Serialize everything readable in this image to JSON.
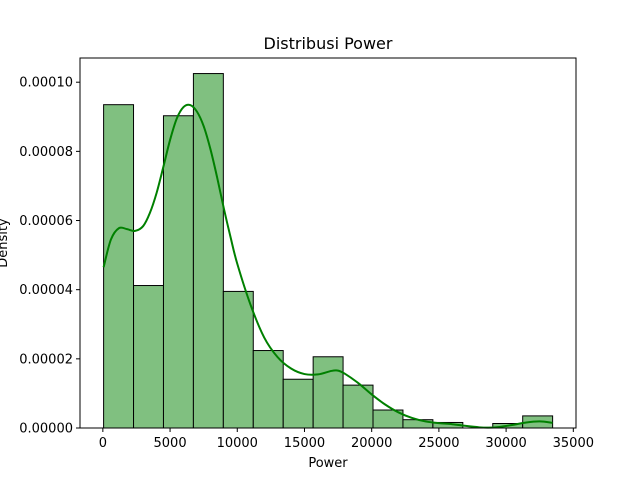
{
  "chart_data": {
    "type": "histogram",
    "title": "Distribusi Power",
    "xlabel": "Power",
    "ylabel": "Density",
    "xlim": [
      -1700,
      35200
    ],
    "ylim": [
      0,
      0.000107
    ],
    "xticks": [
      0,
      5000,
      10000,
      15000,
      20000,
      25000,
      30000,
      35000
    ],
    "xtick_labels": [
      "0",
      "5000",
      "10000",
      "15000",
      "20000",
      "25000",
      "30000",
      "35000"
    ],
    "yticks": [
      0,
      2e-05,
      4e-05,
      6e-05,
      8e-05,
      0.0001
    ],
    "ytick_labels": [
      "0.00000",
      "0.00002",
      "0.00004",
      "0.00006",
      "0.00008",
      "0.00010"
    ],
    "bins": [
      {
        "x0": 56,
        "x1": 2283,
        "density": 9.35e-05
      },
      {
        "x0": 2283,
        "x1": 4510,
        "density": 4.12e-05
      },
      {
        "x0": 4510,
        "x1": 6737,
        "density": 9.03e-05
      },
      {
        "x0": 6737,
        "x1": 8964,
        "density": 0.0001025
      },
      {
        "x0": 8964,
        "x1": 11191,
        "density": 3.95e-05
      },
      {
        "x0": 11191,
        "x1": 13418,
        "density": 2.24e-05
      },
      {
        "x0": 13418,
        "x1": 15645,
        "density": 1.41e-05
      },
      {
        "x0": 15645,
        "x1": 17872,
        "density": 2.06e-05
      },
      {
        "x0": 17872,
        "x1": 20099,
        "density": 1.24e-05
      },
      {
        "x0": 20099,
        "x1": 22326,
        "density": 5.2e-06
      },
      {
        "x0": 22326,
        "x1": 24553,
        "density": 2.4e-06
      },
      {
        "x0": 24553,
        "x1": 26780,
        "density": 1.6e-06
      },
      {
        "x0": 26780,
        "x1": 29007,
        "density": 0
      },
      {
        "x0": 29007,
        "x1": 31234,
        "density": 1.3e-06
      },
      {
        "x0": 31234,
        "x1": 33461,
        "density": 3.5e-06
      }
    ],
    "kde": {
      "x": [
        56,
        600,
        1200,
        1800,
        2400,
        3000,
        3500,
        4000,
        4500,
        5000,
        5500,
        6000,
        6500,
        7000,
        7500,
        8000,
        8500,
        9000,
        9500,
        10000,
        11000,
        12000,
        13000,
        14000,
        15000,
        16000,
        17000,
        17500,
        18000,
        19000,
        20000,
        21000,
        22000,
        23000,
        24000,
        25000,
        26000,
        27000,
        28000,
        28700,
        29500,
        30500,
        31500,
        32500,
        33461
      ],
      "y": [
        4.65e-05,
        5.45e-05,
        5.78e-05,
        5.75e-05,
        5.7e-05,
        5.84e-05,
        6.22e-05,
        6.8e-05,
        7.55e-05,
        8.33e-05,
        8.95e-05,
        9.28e-05,
        9.34e-05,
        9.15e-05,
        8.73e-05,
        8.07e-05,
        7.25e-05,
        6.35e-05,
        5.52e-05,
        4.75e-05,
        3.55e-05,
        2.62e-05,
        2.05e-05,
        1.72e-05,
        1.56e-05,
        1.55e-05,
        1.65e-05,
        1.66e-05,
        1.57e-05,
        1.3e-05,
        9.7e-06,
        6.8e-06,
        4.5e-06,
        2.9e-06,
        1.9e-06,
        1.4e-06,
        1.1e-06,
        6e-07,
        2e-07,
        1e-07,
        3e-07,
        9e-07,
        1.6e-06,
        1.9e-06,
        1.5e-06
      ]
    },
    "colors": {
      "bar_fill": "#80c080",
      "bar_edge": "#000000",
      "kde_line": "#008000"
    },
    "grid": false,
    "legend": "none"
  }
}
